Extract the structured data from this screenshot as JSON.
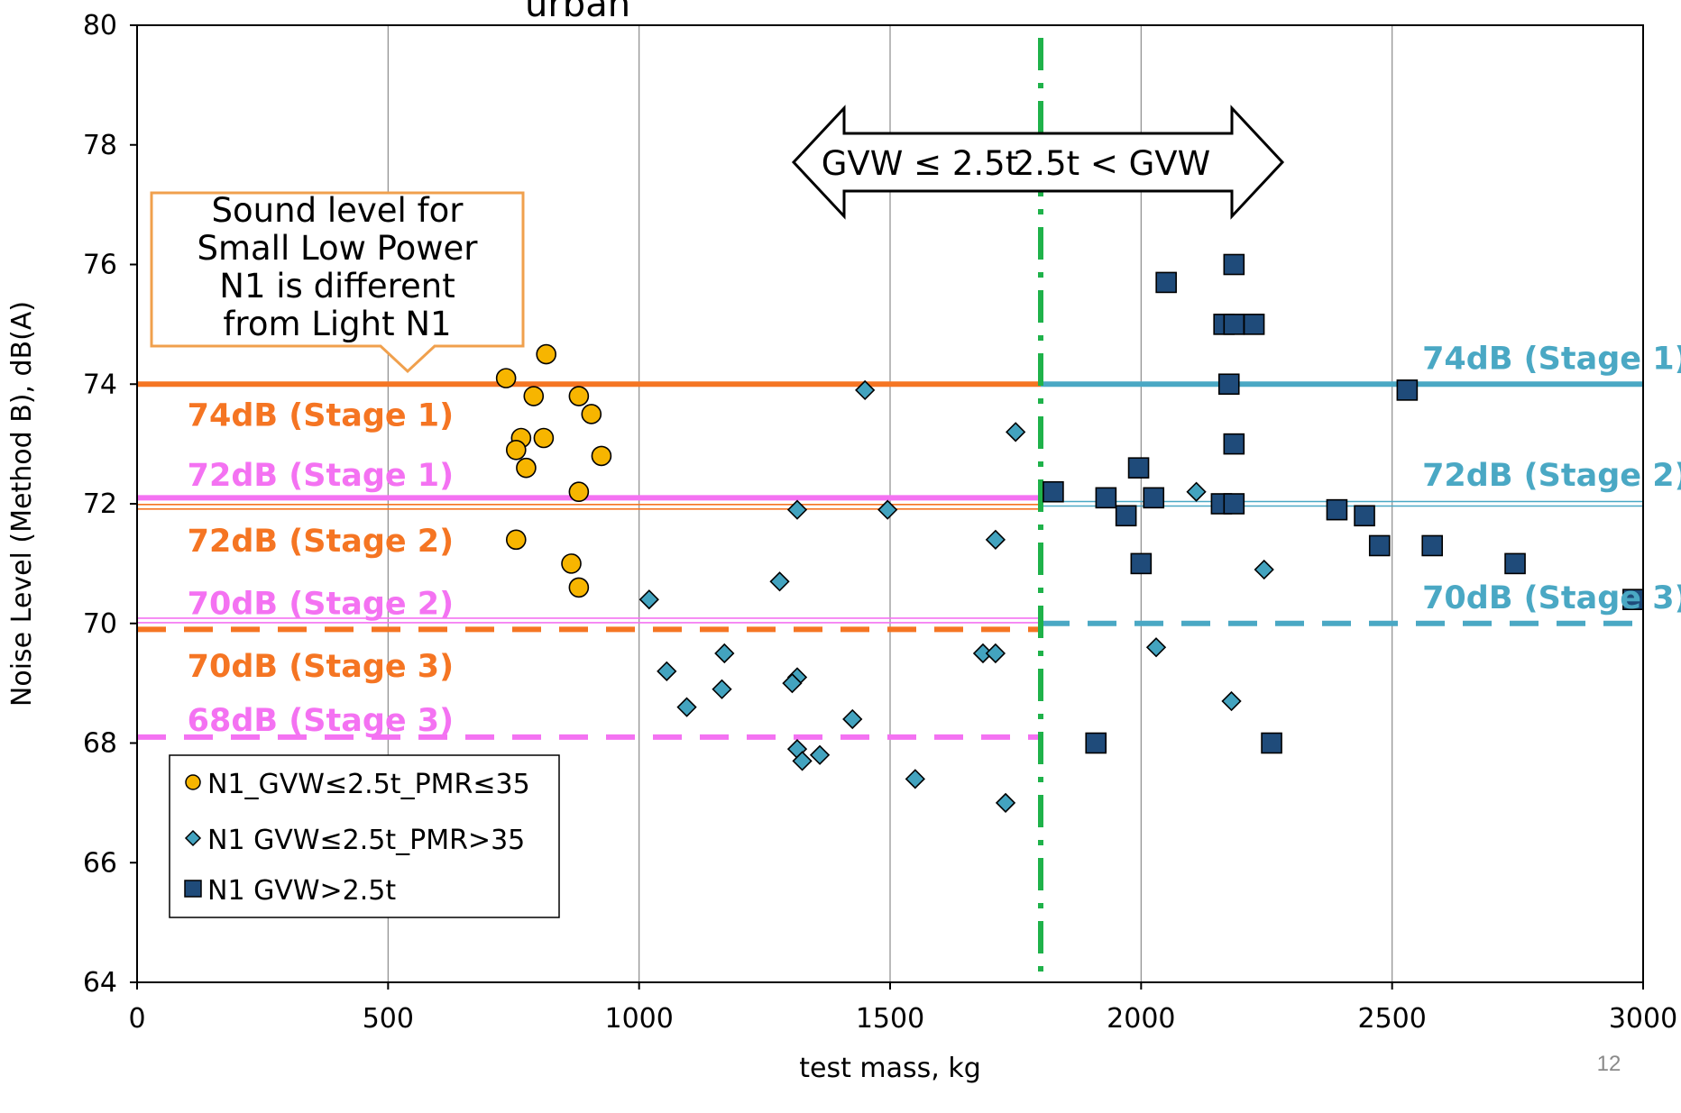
{
  "title_fragment": {
    "sub": "urban",
    "rest": "..............:..."
  },
  "page_number": "12",
  "colors": {
    "n1_light": "#f57523",
    "n1_light_magenta": "#f472f2",
    "n1_heavy": "#4aa8c4",
    "divider": "#1fb24a",
    "circle_fill": "#f7b500",
    "diamond_fill": "#43a3bf",
    "square_fill": "#1f4b7a",
    "callout_border": "#f0a04d"
  },
  "chart_data": {
    "type": "scatter",
    "xlabel": "test mass, kg",
    "ylabel": "Noise Level (Method B), dB(A)",
    "xlim": [
      0,
      3000
    ],
    "ylim": [
      64,
      80
    ],
    "x_ticks": [
      0,
      500,
      1000,
      1500,
      2000,
      2500,
      3000
    ],
    "y_ticks": [
      64,
      66,
      68,
      70,
      72,
      74,
      76,
      78,
      80
    ],
    "grid": "vertical",
    "legend_position": "bottom-left",
    "divider_x": 1800,
    "series": [
      {
        "name": "N1_GVW≤2.5t_PMR≤35",
        "marker": "circle",
        "points": [
          [
            735,
            74.1
          ],
          [
            815,
            74.5
          ],
          [
            790,
            73.8
          ],
          [
            880,
            73.8
          ],
          [
            905,
            73.5
          ],
          [
            765,
            73.1
          ],
          [
            810,
            73.1
          ],
          [
            755,
            72.9
          ],
          [
            925,
            72.8
          ],
          [
            775,
            72.6
          ],
          [
            880,
            72.2
          ],
          [
            755,
            71.4
          ],
          [
            865,
            71.0
          ],
          [
            880,
            70.6
          ]
        ]
      },
      {
        "name": "N1 GVW≤2.5t_PMR>35",
        "marker": "diamond",
        "points": [
          [
            1450,
            73.9
          ],
          [
            1750,
            73.2
          ],
          [
            1315,
            71.9
          ],
          [
            1495,
            71.9
          ],
          [
            1710,
            71.4
          ],
          [
            1280,
            70.7
          ],
          [
            1020,
            70.4
          ],
          [
            1170,
            69.5
          ],
          [
            1685,
            69.5
          ],
          [
            1710,
            69.5
          ],
          [
            1055,
            69.2
          ],
          [
            1315,
            69.1
          ],
          [
            1305,
            69.0
          ],
          [
            1165,
            68.9
          ],
          [
            1095,
            68.6
          ],
          [
            1425,
            68.4
          ],
          [
            1315,
            67.9
          ],
          [
            1360,
            67.8
          ],
          [
            1325,
            67.7
          ],
          [
            1550,
            67.4
          ],
          [
            1730,
            67.0
          ],
          [
            2110,
            72.2
          ],
          [
            2245,
            70.9
          ],
          [
            2030,
            69.6
          ],
          [
            2180,
            68.7
          ]
        ]
      },
      {
        "name": "N1 GVW>2.5t",
        "marker": "square",
        "points": [
          [
            2185,
            76.0
          ],
          [
            2050,
            75.7
          ],
          [
            2165,
            75.0
          ],
          [
            2185,
            75.0
          ],
          [
            2225,
            75.0
          ],
          [
            2175,
            74.0
          ],
          [
            2530,
            73.9
          ],
          [
            2185,
            73.0
          ],
          [
            1995,
            72.6
          ],
          [
            1825,
            72.2
          ],
          [
            1930,
            72.1
          ],
          [
            2025,
            72.1
          ],
          [
            2160,
            72.0
          ],
          [
            2185,
            72.0
          ],
          [
            2390,
            71.9
          ],
          [
            1970,
            71.8
          ],
          [
            2445,
            71.8
          ],
          [
            2475,
            71.3
          ],
          [
            2580,
            71.3
          ],
          [
            2000,
            71.0
          ],
          [
            2745,
            71.0
          ],
          [
            2980,
            70.4
          ],
          [
            1910,
            68.0
          ],
          [
            2260,
            68.0
          ]
        ]
      }
    ],
    "limit_lines": [
      {
        "x0": 0,
        "x1": 1800,
        "y": 74.0,
        "style": "solid-thick",
        "color_key": "n1_light"
      },
      {
        "x0": 0,
        "x1": 1800,
        "y": 72.1,
        "style": "solid-thick",
        "color_key": "n1_light_magenta"
      },
      {
        "x0": 0,
        "x1": 1800,
        "y": 71.95,
        "style": "double-thin",
        "color_key": "n1_light"
      },
      {
        "x0": 0,
        "x1": 1800,
        "y": 70.05,
        "style": "double-thin",
        "color_key": "n1_light_magenta"
      },
      {
        "x0": 0,
        "x1": 1800,
        "y": 69.9,
        "style": "dashed",
        "color_key": "n1_light"
      },
      {
        "x0": 0,
        "x1": 1800,
        "y": 68.1,
        "style": "dashed",
        "color_key": "n1_light_magenta"
      },
      {
        "x0": 1800,
        "x1": 3000,
        "y": 74.0,
        "style": "solid-thick",
        "color_key": "n1_heavy"
      },
      {
        "x0": 1800,
        "x1": 3000,
        "y": 72.0,
        "style": "double-thin",
        "color_key": "n1_heavy"
      },
      {
        "x0": 1800,
        "x1": 3000,
        "y": 70.0,
        "style": "dashed",
        "color_key": "n1_heavy"
      }
    ],
    "limit_labels": [
      {
        "text": "74dB (Stage 1)",
        "x": 100,
        "y": 73.5,
        "color_key": "n1_light"
      },
      {
        "text": "72dB (Stage 1)",
        "x": 100,
        "y": 72.5,
        "color_key": "n1_light_magenta"
      },
      {
        "text": "72dB (Stage 2)",
        "x": 100,
        "y": 71.4,
        "color_key": "n1_light"
      },
      {
        "text": "70dB (Stage 2)",
        "x": 100,
        "y": 70.35,
        "color_key": "n1_light_magenta"
      },
      {
        "text": "70dB (Stage 3)",
        "x": 100,
        "y": 69.3,
        "color_key": "n1_light"
      },
      {
        "text": "68dB (Stage 3)",
        "x": 100,
        "y": 68.4,
        "color_key": "n1_light_magenta"
      },
      {
        "text": "74dB (Stage 1)",
        "x": 2560,
        "y": 74.45,
        "color_key": "n1_heavy"
      },
      {
        "text": "72dB (Stage 2)",
        "x": 2560,
        "y": 72.5,
        "color_key": "n1_heavy"
      },
      {
        "text": "70dB (Stage 3)",
        "x": 2560,
        "y": 70.45,
        "color_key": "n1_heavy"
      }
    ],
    "annotations": {
      "callout_lines": [
        "Sound level for",
        "Small Low Power",
        "N1 is different",
        "from  Light N1"
      ],
      "arrow_left_text": "GVW ≤ 2.5t",
      "arrow_right_text": "2.5t < GVW"
    }
  }
}
